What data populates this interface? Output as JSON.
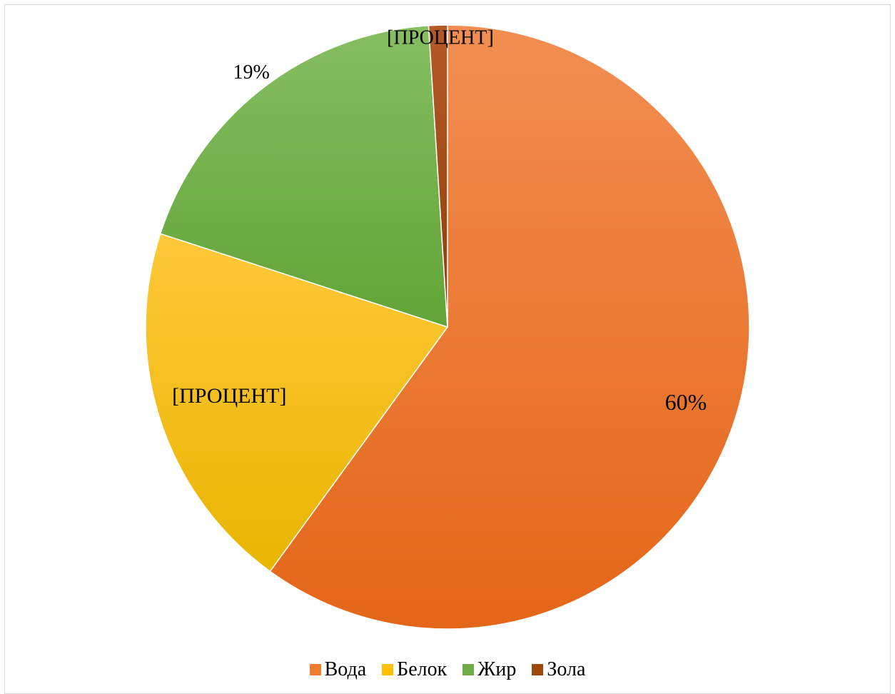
{
  "chart_data": {
    "type": "pie",
    "title": "",
    "categories": [
      "Вода",
      "Белок",
      "Жир",
      "Зола"
    ],
    "values": [
      60,
      20,
      19,
      1
    ],
    "unit": "%",
    "data_labels": [
      "60%",
      "[ПРОЦЕНТ]",
      "19%",
      "[ПРОЦЕНТ]"
    ],
    "colors": [
      "#ED7D31",
      "#FFC000",
      "#70AD47",
      "#9E480E"
    ],
    "start_angle_deg": 0,
    "direction": "clockwise",
    "legend_position": "bottom"
  },
  "legend": {
    "items": [
      {
        "label": "Вода",
        "color": "#ED7D31"
      },
      {
        "label": "Белок",
        "color": "#FFC000"
      },
      {
        "label": "Жир",
        "color": "#70AD47"
      },
      {
        "label": "Зола",
        "color": "#9E480E"
      }
    ]
  }
}
